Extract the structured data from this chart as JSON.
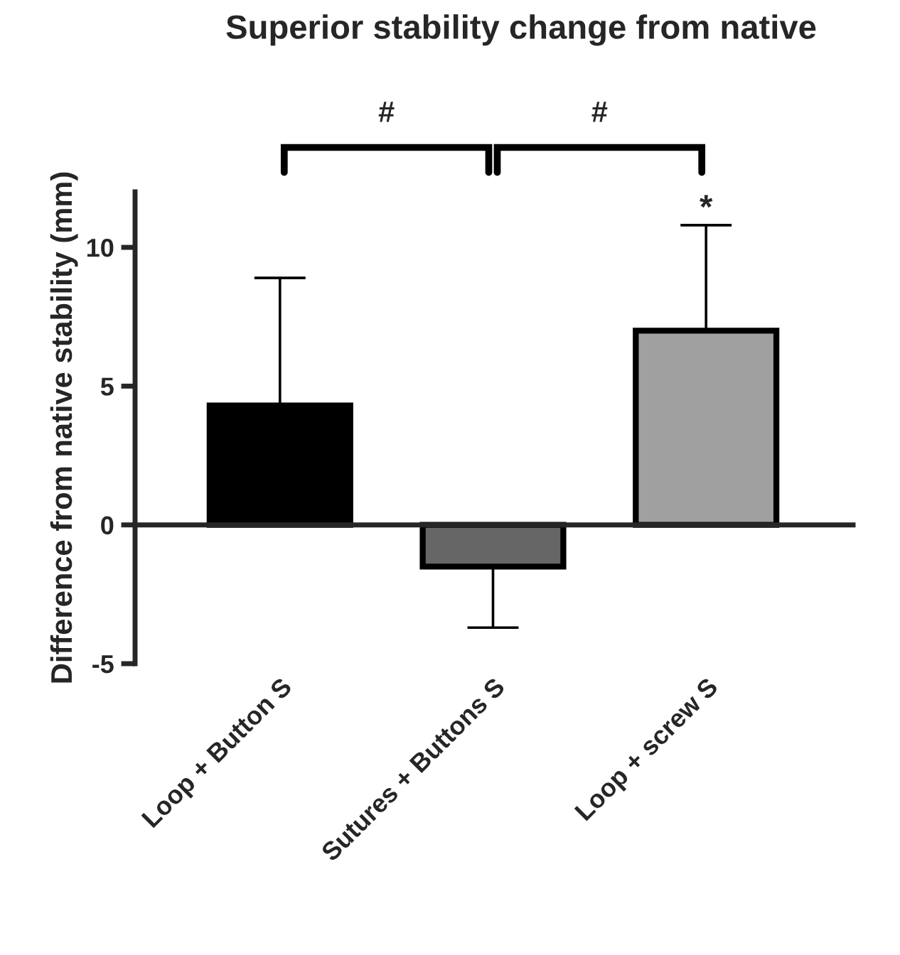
{
  "chart_data": {
    "type": "bar",
    "title": "Superior stability change from native",
    "ylabel": "Difference from native stability (mm)",
    "categories": [
      "Loop + Button S",
      "Sutures + Buttons S",
      "Loop + screw S"
    ],
    "values": [
      4.3,
      -1.5,
      7.0
    ],
    "colors": [
      "#000000",
      "#666666",
      "#a0a0a0"
    ],
    "errors": [
      [
        4.3,
        8.9
      ],
      [
        -3.7,
        -1.5
      ],
      [
        7.0,
        10.8
      ]
    ],
    "ylim": [
      -5,
      12
    ],
    "yticks": [
      -5,
      0,
      5,
      10
    ],
    "annotations": [
      "#",
      "#",
      {
        "text": "*",
        "x": "Loop + screw S",
        "y": 10.8
      }
    ]
  }
}
